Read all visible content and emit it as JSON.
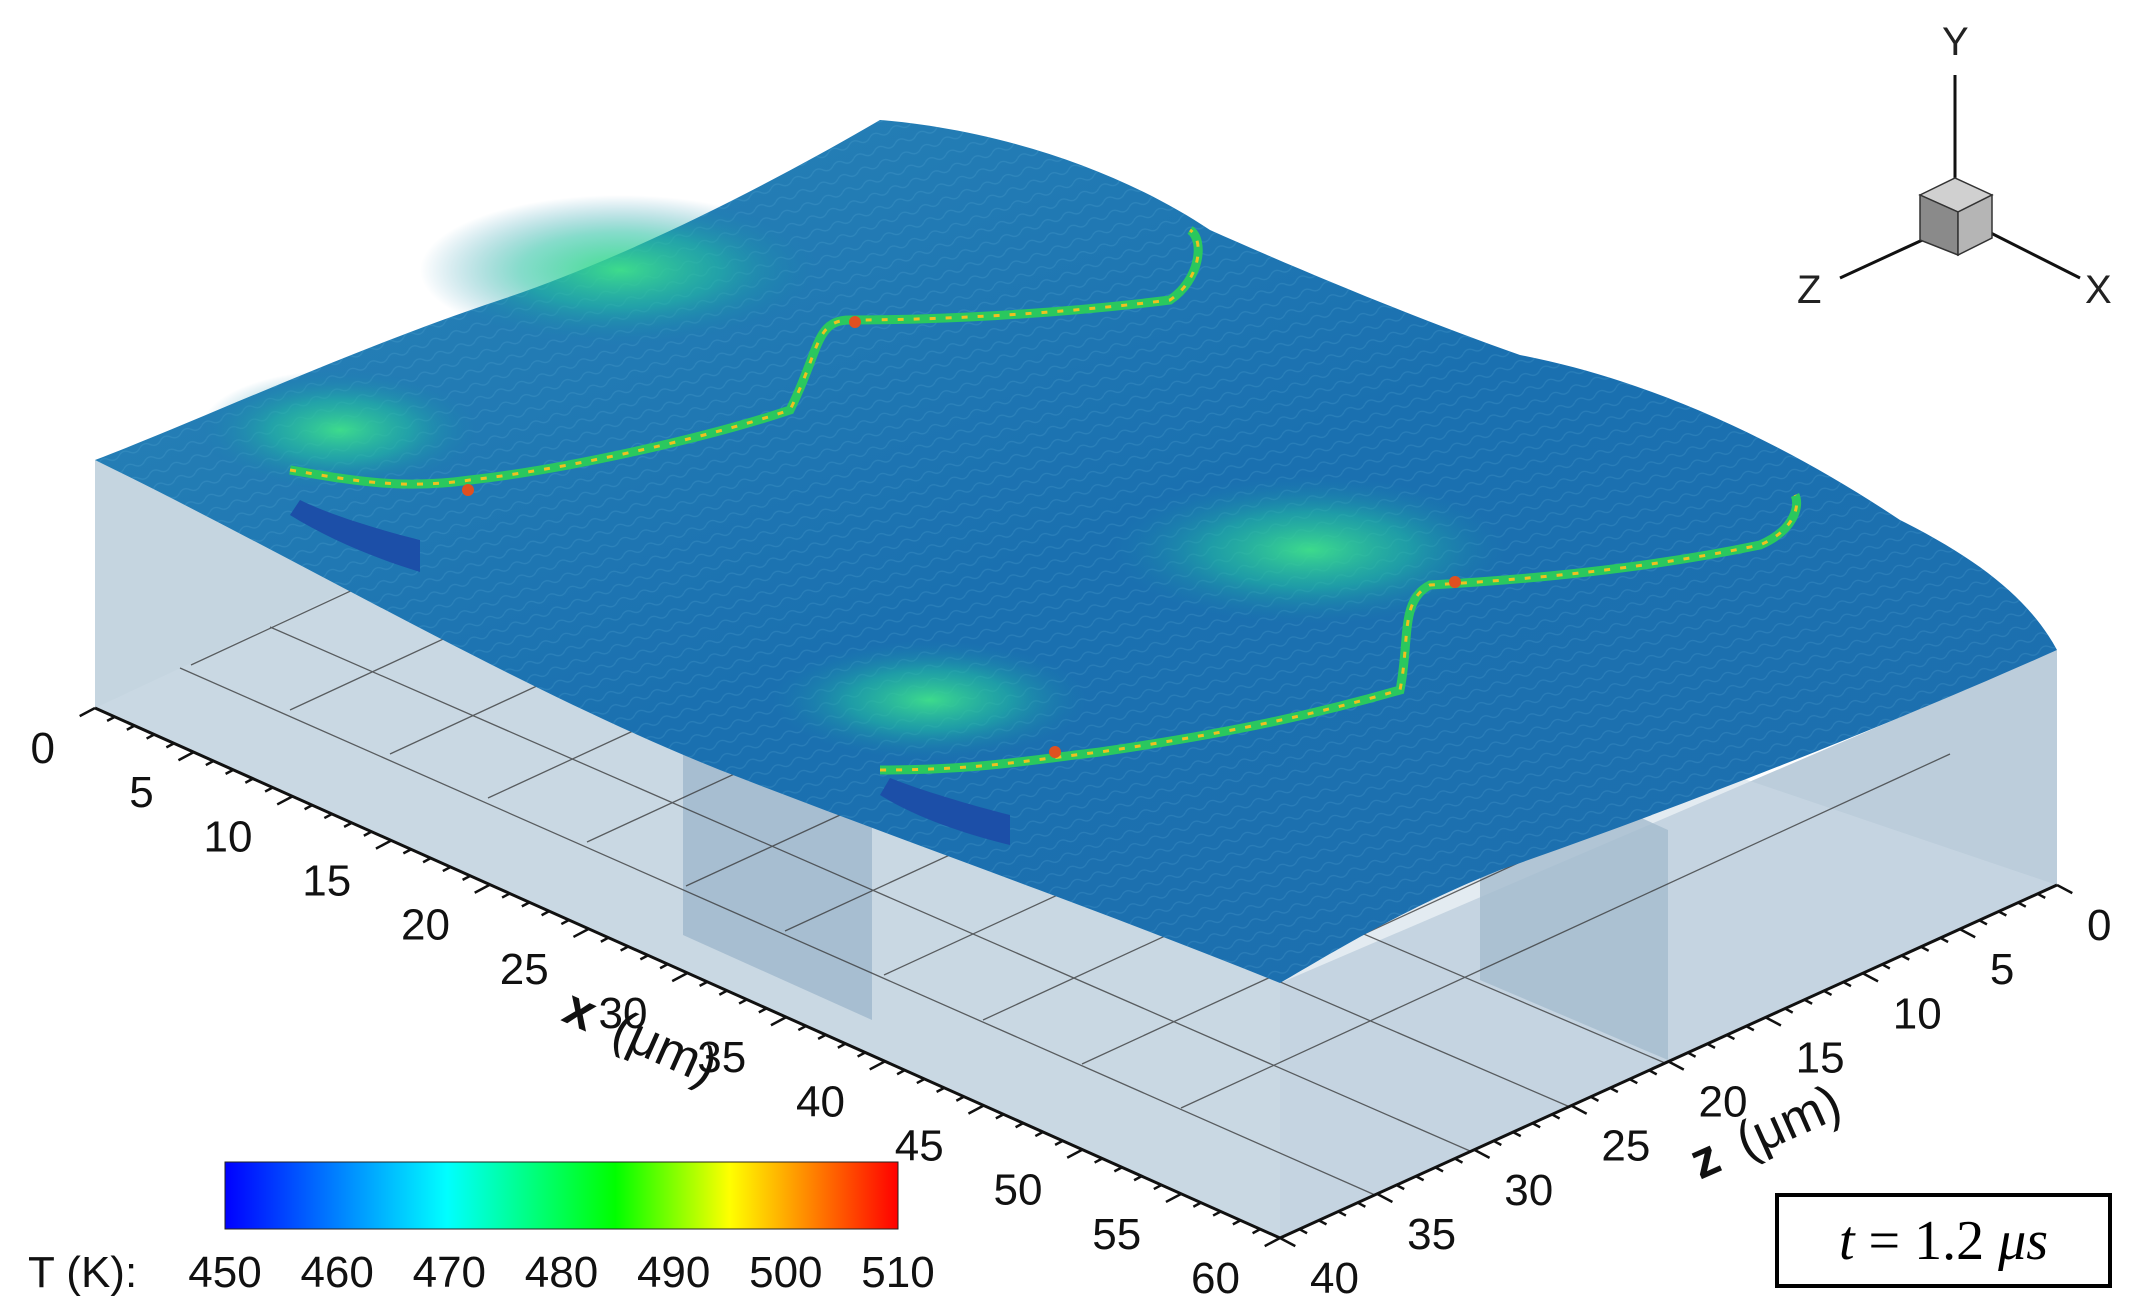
{
  "axes": {
    "x": {
      "title_var": "x",
      "title_unit": "(μm)",
      "ticks": [
        "0",
        "5",
        "10",
        "15",
        "20",
        "25",
        "30",
        "35",
        "40",
        "45",
        "50",
        "55",
        "60"
      ]
    },
    "z": {
      "title_var": "z",
      "title_unit": "(μm)",
      "ticks": [
        "0",
        "5",
        "10",
        "15",
        "20",
        "25",
        "30",
        "35",
        "40"
      ]
    }
  },
  "triad": {
    "y": "Y",
    "z": "Z",
    "x": "X"
  },
  "colorbar": {
    "label": "T (K):",
    "ticks": [
      "450",
      "460",
      "470",
      "480",
      "490",
      "500",
      "510"
    ],
    "colors": [
      "#0000ff",
      "#00ffff",
      "#00ff00",
      "#ffff00",
      "#ff0000"
    ]
  },
  "time_box": {
    "var": "t",
    "eq": " = 1.2 ",
    "unit": "μs"
  },
  "colors": {
    "liquid": "#1f78b8",
    "bulk": "#c5d5e0",
    "highlight": "#1fbf58"
  }
}
